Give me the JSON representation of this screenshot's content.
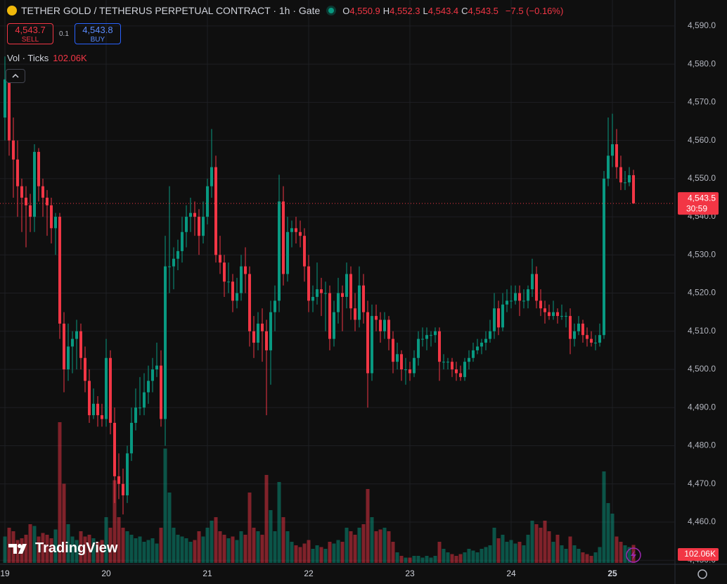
{
  "header": {
    "title": "TETHER GOLD / TETHERUS PERPETUAL CONTRACT · 1h · Gate",
    "ohlc": [
      {
        "key": "O",
        "value": "4,550.9"
      },
      {
        "key": "H",
        "value": "4,552.3"
      },
      {
        "key": "L",
        "value": "4,543.4"
      },
      {
        "key": "C",
        "value": "4,543.5"
      }
    ],
    "change": "−7.5 (−0.16%)",
    "sell": {
      "price": "4,543.7",
      "label": "SELL"
    },
    "quantity": "0.1",
    "buy": {
      "price": "4,543.8",
      "label": "BUY"
    },
    "volume_legend": "Vol · Ticks"
  },
  "watermark": "TradingView",
  "chart_data": {
    "type": "candlestick",
    "up_color": "#089981",
    "down_color": "#f23645",
    "grid": true,
    "ylim": [
      4449.3,
      4596.8
    ],
    "yticks": [
      {
        "value": 4590,
        "label": "4,590.0"
      },
      {
        "value": 4580,
        "label": "4,580.0"
      },
      {
        "value": 4570,
        "label": "4,570.0"
      },
      {
        "value": 4560,
        "label": "4,560.0"
      },
      {
        "value": 4550,
        "label": "4,550.0"
      },
      {
        "value": 4540,
        "label": "4,540.0"
      },
      {
        "value": 4530,
        "label": "4,530.0"
      },
      {
        "value": 4520,
        "label": "4,520.0"
      },
      {
        "value": 4510,
        "label": "4,510.0"
      },
      {
        "value": 4500,
        "label": "4,500.0"
      },
      {
        "value": 4490,
        "label": "4,490.0"
      },
      {
        "value": 4480,
        "label": "4,480.0"
      },
      {
        "value": 4470,
        "label": "4,470.0"
      },
      {
        "value": 4460,
        "label": "4,460.0"
      },
      {
        "value": 4450,
        "label": "4,450.0"
      }
    ],
    "categories": [
      "19",
      null,
      null,
      null,
      null,
      null,
      null,
      null,
      null,
      null,
      null,
      null,
      null,
      null,
      null,
      null,
      null,
      null,
      null,
      null,
      null,
      null,
      null,
      null,
      "20",
      null,
      null,
      null,
      null,
      null,
      null,
      null,
      null,
      null,
      null,
      null,
      null,
      null,
      null,
      null,
      null,
      null,
      null,
      null,
      null,
      null,
      null,
      null,
      "21",
      null,
      null,
      null,
      null,
      null,
      null,
      null,
      null,
      null,
      null,
      null,
      null,
      null,
      null,
      null,
      null,
      null,
      null,
      null,
      null,
      null,
      null,
      null,
      "22",
      null,
      null,
      null,
      null,
      null,
      null,
      null,
      null,
      null,
      null,
      null,
      null,
      null,
      null,
      null,
      null,
      null,
      null,
      null,
      null,
      null,
      null,
      null,
      "23",
      null,
      null,
      null,
      null,
      null,
      null,
      null,
      null,
      null,
      null,
      null,
      null,
      null,
      null,
      null,
      null,
      null,
      null,
      null,
      null,
      null,
      null,
      null,
      "24",
      null,
      null,
      null,
      null,
      null,
      null,
      null,
      null,
      null,
      null,
      null,
      null,
      null,
      null,
      null,
      null,
      null,
      null,
      null,
      null,
      null,
      null,
      null,
      "25",
      null,
      null,
      null,
      null,
      null
    ],
    "candles": [
      [
        4566,
        4582,
        4560,
        4576
      ],
      [
        4576,
        4578,
        4556,
        4560
      ],
      [
        4560,
        4566,
        4545,
        4555
      ],
      [
        4555,
        4560,
        4540,
        4548
      ],
      [
        4548,
        4550,
        4536,
        4545
      ],
      [
        4545,
        4548,
        4532,
        4543
      ],
      [
        4543,
        4546,
        4536,
        4540
      ],
      [
        4540,
        4559,
        4536,
        4557
      ],
      [
        4557,
        4558,
        4544,
        4548
      ],
      [
        4548,
        4550,
        4540,
        4545
      ],
      [
        4545,
        4547,
        4535,
        4543
      ],
      [
        4543,
        4545,
        4533,
        4537
      ],
      [
        4537,
        4541,
        4530,
        4540
      ],
      [
        4540,
        4541,
        4508,
        4512
      ],
      [
        4512,
        4515,
        4494,
        4500
      ],
      [
        4500,
        4512,
        4497,
        4506
      ],
      [
        4506,
        4510,
        4499,
        4508
      ],
      [
        4508,
        4513,
        4500,
        4510
      ],
      [
        4510,
        4512,
        4500,
        4503
      ],
      [
        4503,
        4506,
        4494,
        4497
      ],
      [
        4497,
        4500,
        4486,
        4488
      ],
      [
        4488,
        4495,
        4487,
        4491
      ],
      [
        4491,
        4493,
        4485,
        4488
      ],
      [
        4488,
        4491,
        4485,
        4487
      ],
      [
        4487,
        4508,
        4485,
        4503
      ],
      [
        4503,
        4505,
        4483,
        4486
      ],
      [
        4486,
        4490,
        4465,
        4472
      ],
      [
        4472,
        4478,
        4466,
        4470
      ],
      [
        4470,
        4474,
        4462,
        4467
      ],
      [
        4467,
        4480,
        4465,
        4478
      ],
      [
        4478,
        4490,
        4476,
        4486
      ],
      [
        4486,
        4495,
        4484,
        4490
      ],
      [
        4490,
        4498,
        4488,
        4490
      ],
      [
        4490,
        4499,
        4488,
        4494
      ],
      [
        4494,
        4501,
        4491,
        4497
      ],
      [
        4497,
        4503,
        4494,
        4500
      ],
      [
        4500,
        4507,
        4498,
        4501
      ],
      [
        4501,
        4505,
        4485,
        4487
      ],
      [
        4487,
        4535,
        4480,
        4527
      ],
      [
        4527,
        4548,
        4520,
        4527
      ],
      [
        4527,
        4532,
        4521,
        4529
      ],
      [
        4529,
        4534,
        4526,
        4531
      ],
      [
        4531,
        4540,
        4528,
        4536
      ],
      [
        4536,
        4543,
        4532,
        4540
      ],
      [
        4540,
        4545,
        4536,
        4541
      ],
      [
        4541,
        4544,
        4535,
        4540
      ],
      [
        4540,
        4542,
        4530,
        4535
      ],
      [
        4535,
        4544,
        4533,
        4540
      ],
      [
        4540,
        4550,
        4538,
        4548
      ],
      [
        4548,
        4563,
        4545,
        4553
      ],
      [
        4553,
        4556,
        4528,
        4530
      ],
      [
        4530,
        4535,
        4525,
        4528
      ],
      [
        4528,
        4530,
        4519,
        4523
      ],
      [
        4523,
        4528,
        4520,
        4523
      ],
      [
        4523,
        4525,
        4515,
        4518
      ],
      [
        4518,
        4524,
        4516,
        4520
      ],
      [
        4520,
        4530,
        4518,
        4527
      ],
      [
        4527,
        4532,
        4520,
        4525
      ],
      [
        4525,
        4527,
        4506,
        4510
      ],
      [
        4510,
        4514,
        4503,
        4507
      ],
      [
        4507,
        4515,
        4505,
        4512
      ],
      [
        4512,
        4516,
        4502,
        4510
      ],
      [
        4510,
        4513,
        4488,
        4505
      ],
      [
        4505,
        4518,
        4496,
        4515
      ],
      [
        4515,
        4522,
        4510,
        4518
      ],
      [
        4518,
        4551,
        4515,
        4544
      ],
      [
        4544,
        4548,
        4522,
        4525
      ],
      [
        4525,
        4540,
        4523,
        4536
      ],
      [
        4536,
        4539,
        4532,
        4537
      ],
      [
        4537,
        4540,
        4533,
        4536
      ],
      [
        4536,
        4539,
        4532,
        4535
      ],
      [
        4535,
        4537,
        4523,
        4527
      ],
      [
        4527,
        4530,
        4515,
        4518
      ],
      [
        4518,
        4522,
        4515,
        4519
      ],
      [
        4519,
        4528,
        4517,
        4521
      ],
      [
        4521,
        4524,
        4514,
        4520
      ],
      [
        4520,
        4523,
        4510,
        4520
      ],
      [
        4520,
        4522,
        4505,
        4508
      ],
      [
        4508,
        4518,
        4506,
        4515
      ],
      [
        4515,
        4524,
        4512,
        4520
      ],
      [
        4520,
        4522,
        4510,
        4519
      ],
      [
        4519,
        4528,
        4516,
        4525
      ],
      [
        4525,
        4527,
        4513,
        4516
      ],
      [
        4516,
        4520,
        4510,
        4513
      ],
      [
        4513,
        4527,
        4511,
        4522
      ],
      [
        4522,
        4525,
        4512,
        4515
      ],
      [
        4515,
        4518,
        4490,
        4499
      ],
      [
        4499,
        4517,
        4497,
        4514
      ],
      [
        4514,
        4517,
        4510,
        4513
      ],
      [
        4513,
        4515,
        4507,
        4510
      ],
      [
        4510,
        4515,
        4508,
        4513
      ],
      [
        4513,
        4514,
        4505,
        4508
      ],
      [
        4508,
        4510,
        4499,
        4502
      ],
      [
        4502,
        4507,
        4500,
        4504
      ],
      [
        4504,
        4505,
        4497,
        4500
      ],
      [
        4500,
        4503,
        4496,
        4500
      ],
      [
        4500,
        4502,
        4497,
        4499
      ],
      [
        4499,
        4505,
        4498,
        4503
      ],
      [
        4503,
        4510,
        4501,
        4508
      ],
      [
        4508,
        4511,
        4506,
        4508
      ],
      [
        4508,
        4511,
        4505,
        4509
      ],
      [
        4509,
        4510,
        4506,
        4509
      ],
      [
        4509,
        4511,
        4507,
        4510
      ],
      [
        4510,
        4511,
        4497,
        4502
      ],
      [
        4502,
        4504,
        4500,
        4502
      ],
      [
        4502,
        4503,
        4500,
        4502
      ],
      [
        4502,
        4503,
        4498,
        4500
      ],
      [
        4500,
        4502,
        4497,
        4499
      ],
      [
        4499,
        4501,
        4497,
        4498
      ],
      [
        4498,
        4503,
        4497,
        4502
      ],
      [
        4502,
        4505,
        4500,
        4503
      ],
      [
        4503,
        4507,
        4502,
        4505
      ],
      [
        4505,
        4508,
        4504,
        4506
      ],
      [
        4506,
        4508,
        4504,
        4507
      ],
      [
        4507,
        4510,
        4505,
        4508
      ],
      [
        4508,
        4513,
        4507,
        4510
      ],
      [
        4510,
        4520,
        4508,
        4516
      ],
      [
        4516,
        4518,
        4509,
        4511
      ],
      [
        4511,
        4520,
        4510,
        4517
      ],
      [
        4517,
        4521,
        4515,
        4518
      ],
      [
        4518,
        4522,
        4516,
        4518
      ],
      [
        4518,
        4522,
        4517,
        4520
      ],
      [
        4520,
        4522,
        4514,
        4518
      ],
      [
        4518,
        4521,
        4516,
        4518
      ],
      [
        4518,
        4522,
        4516,
        4521
      ],
      [
        4521,
        4529,
        4519,
        4525
      ],
      [
        4525,
        4527,
        4516,
        4518
      ],
      [
        4518,
        4521,
        4514,
        4516
      ],
      [
        4516,
        4518,
        4512,
        4515
      ],
      [
        4515,
        4517,
        4513,
        4514
      ],
      [
        4514,
        4518,
        4513,
        4515
      ],
      [
        4515,
        4516,
        4512,
        4514
      ],
      [
        4514,
        4517,
        4513,
        4514
      ],
      [
        4514,
        4515,
        4511,
        4514
      ],
      [
        4514,
        4516,
        4504,
        4508
      ],
      [
        4508,
        4512,
        4506,
        4510
      ],
      [
        4510,
        4514,
        4509,
        4512
      ],
      [
        4512,
        4513,
        4507,
        4509
      ],
      [
        4509,
        4511,
        4506,
        4508
      ],
      [
        4508,
        4510,
        4506,
        4507
      ],
      [
        4507,
        4509,
        4505,
        4507
      ],
      [
        4507,
        4512,
        4506,
        4509
      ],
      [
        4509,
        4552,
        4508,
        4550
      ],
      [
        4550,
        4566,
        4548,
        4556
      ],
      [
        4556,
        4567,
        4553,
        4559
      ],
      [
        4559,
        4563,
        4550,
        4553
      ],
      [
        4553,
        4556,
        4547,
        4549
      ],
      [
        4549,
        4552,
        4547,
        4549
      ],
      [
        4549,
        4553,
        4548,
        4550.9
      ],
      [
        4550.9,
        4552.3,
        4543.4,
        4543.5
      ]
    ],
    "volume": {
      "values": [
        150,
        200,
        180,
        130,
        140,
        160,
        220,
        210,
        150,
        170,
        160,
        140,
        190,
        800,
        450,
        220,
        150,
        130,
        180,
        150,
        160,
        140,
        120,
        130,
        260,
        200,
        470,
        260,
        200,
        180,
        160,
        140,
        150,
        120,
        130,
        140,
        110,
        200,
        650,
        400,
        200,
        160,
        150,
        140,
        120,
        130,
        180,
        150,
        200,
        240,
        260,
        180,
        160,
        140,
        150,
        130,
        180,
        160,
        400,
        200,
        180,
        160,
        500,
        300,
        180,
        460,
        260,
        180,
        120,
        100,
        90,
        110,
        130,
        80,
        100,
        90,
        80,
        120,
        110,
        130,
        120,
        200,
        180,
        160,
        200,
        220,
        420,
        260,
        180,
        190,
        200,
        180,
        120,
        60,
        40,
        30,
        30,
        40,
        40,
        30,
        40,
        30,
        40,
        120,
        80,
        60,
        50,
        40,
        50,
        60,
        80,
        70,
        60,
        80,
        90,
        100,
        200,
        140,
        160,
        120,
        130,
        110,
        120,
        100,
        160,
        240,
        220,
        200,
        240,
        180,
        120,
        160,
        100,
        80,
        150,
        100,
        80,
        60,
        50,
        40,
        60,
        90,
        520,
        340,
        280,
        150,
        120,
        100,
        90,
        102.06
      ],
      "last_label": "102.06K"
    },
    "last_price_label": "4,543.5",
    "countdown": "30:59"
  }
}
